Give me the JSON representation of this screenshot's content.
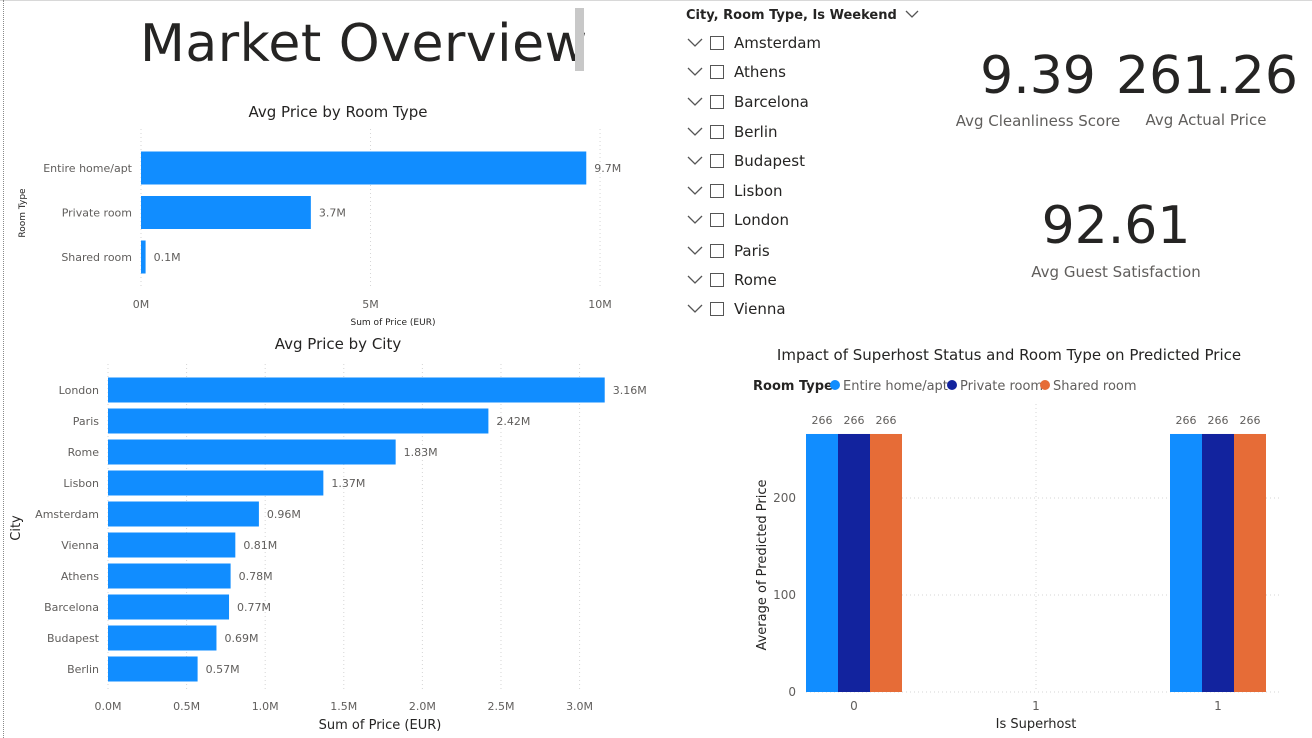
{
  "page": {
    "title": "Market Overview"
  },
  "colors": {
    "bar_blue": "#118DFF",
    "private_room": "#12239E",
    "shared_room": "#E66C37",
    "text": "#252423",
    "muted": "#605e5c"
  },
  "slicer": {
    "header": "City, Room Type, Is Weekend",
    "items": [
      "Amsterdam",
      "Athens",
      "Barcelona",
      "Berlin",
      "Budapest",
      "Lisbon",
      "London",
      "Paris",
      "Rome",
      "Vienna"
    ]
  },
  "kpis": {
    "cleanliness": {
      "value": "9.39",
      "label": "Avg Cleanliness Score"
    },
    "actual_price": {
      "value": "261.26",
      "label": "Avg Actual Price"
    },
    "guest_satisfaction": {
      "value": "92.61",
      "label": "Avg Guest Satisfaction"
    }
  },
  "chart_data": [
    {
      "type": "bar",
      "orientation": "horizontal",
      "title": "Avg Price by Room Type",
      "xlabel": "Sum of Price (EUR)",
      "ylabel": "Room Type",
      "categories": [
        "Entire home/apt",
        "Private room",
        "Shared room"
      ],
      "values": [
        9.7,
        3.7,
        0.1
      ],
      "data_labels": [
        "9.7M",
        "3.7M",
        "0.1M"
      ],
      "xlim": [
        0,
        10.5
      ],
      "xticks": [
        0,
        5,
        10
      ],
      "xtick_labels": [
        "0M",
        "5M",
        "10M"
      ],
      "grid": true
    },
    {
      "type": "bar",
      "orientation": "horizontal",
      "title": "Avg Price by City",
      "xlabel": "Sum of Price (EUR)",
      "ylabel": "City",
      "categories": [
        "London",
        "Paris",
        "Rome",
        "Lisbon",
        "Amsterdam",
        "Vienna",
        "Athens",
        "Barcelona",
        "Budapest",
        "Berlin"
      ],
      "values": [
        3.16,
        2.42,
        1.83,
        1.37,
        0.96,
        0.81,
        0.78,
        0.77,
        0.69,
        0.57
      ],
      "data_labels": [
        "3.16M",
        "2.42M",
        "1.83M",
        "1.37M",
        "0.96M",
        "0.81M",
        "0.78M",
        "0.77M",
        "0.69M",
        "0.57M"
      ],
      "xlim": [
        0,
        3.2
      ],
      "xticks": [
        0,
        0.5,
        1.0,
        1.5,
        2.0,
        2.5,
        3.0
      ],
      "xtick_labels": [
        "0.0M",
        "0.5M",
        "1.0M",
        "1.5M",
        "2.0M",
        "2.5M",
        "3.0M"
      ],
      "grid": true
    },
    {
      "type": "bar",
      "orientation": "vertical",
      "title": "Impact of Superhost Status and Room Type on Predicted Price",
      "xlabel": "Is Superhost",
      "ylabel": "Average of Predicted Price",
      "legend_title": "Room Type",
      "legend_position": "top-left",
      "categories": [
        0,
        1
      ],
      "axis_ticks_x": [
        "0",
        "1",
        "1"
      ],
      "series": [
        {
          "name": "Entire home/apt",
          "values": [
            266,
            266
          ]
        },
        {
          "name": "Private room",
          "values": [
            266,
            266
          ]
        },
        {
          "name": "Shared room",
          "values": [
            266,
            266
          ]
        }
      ],
      "data_labels": [
        "266",
        "266",
        "266",
        "266",
        "266",
        "266"
      ],
      "ylim": [
        0,
        270
      ],
      "yticks": [
        0,
        100,
        200
      ],
      "grid": true
    }
  ]
}
